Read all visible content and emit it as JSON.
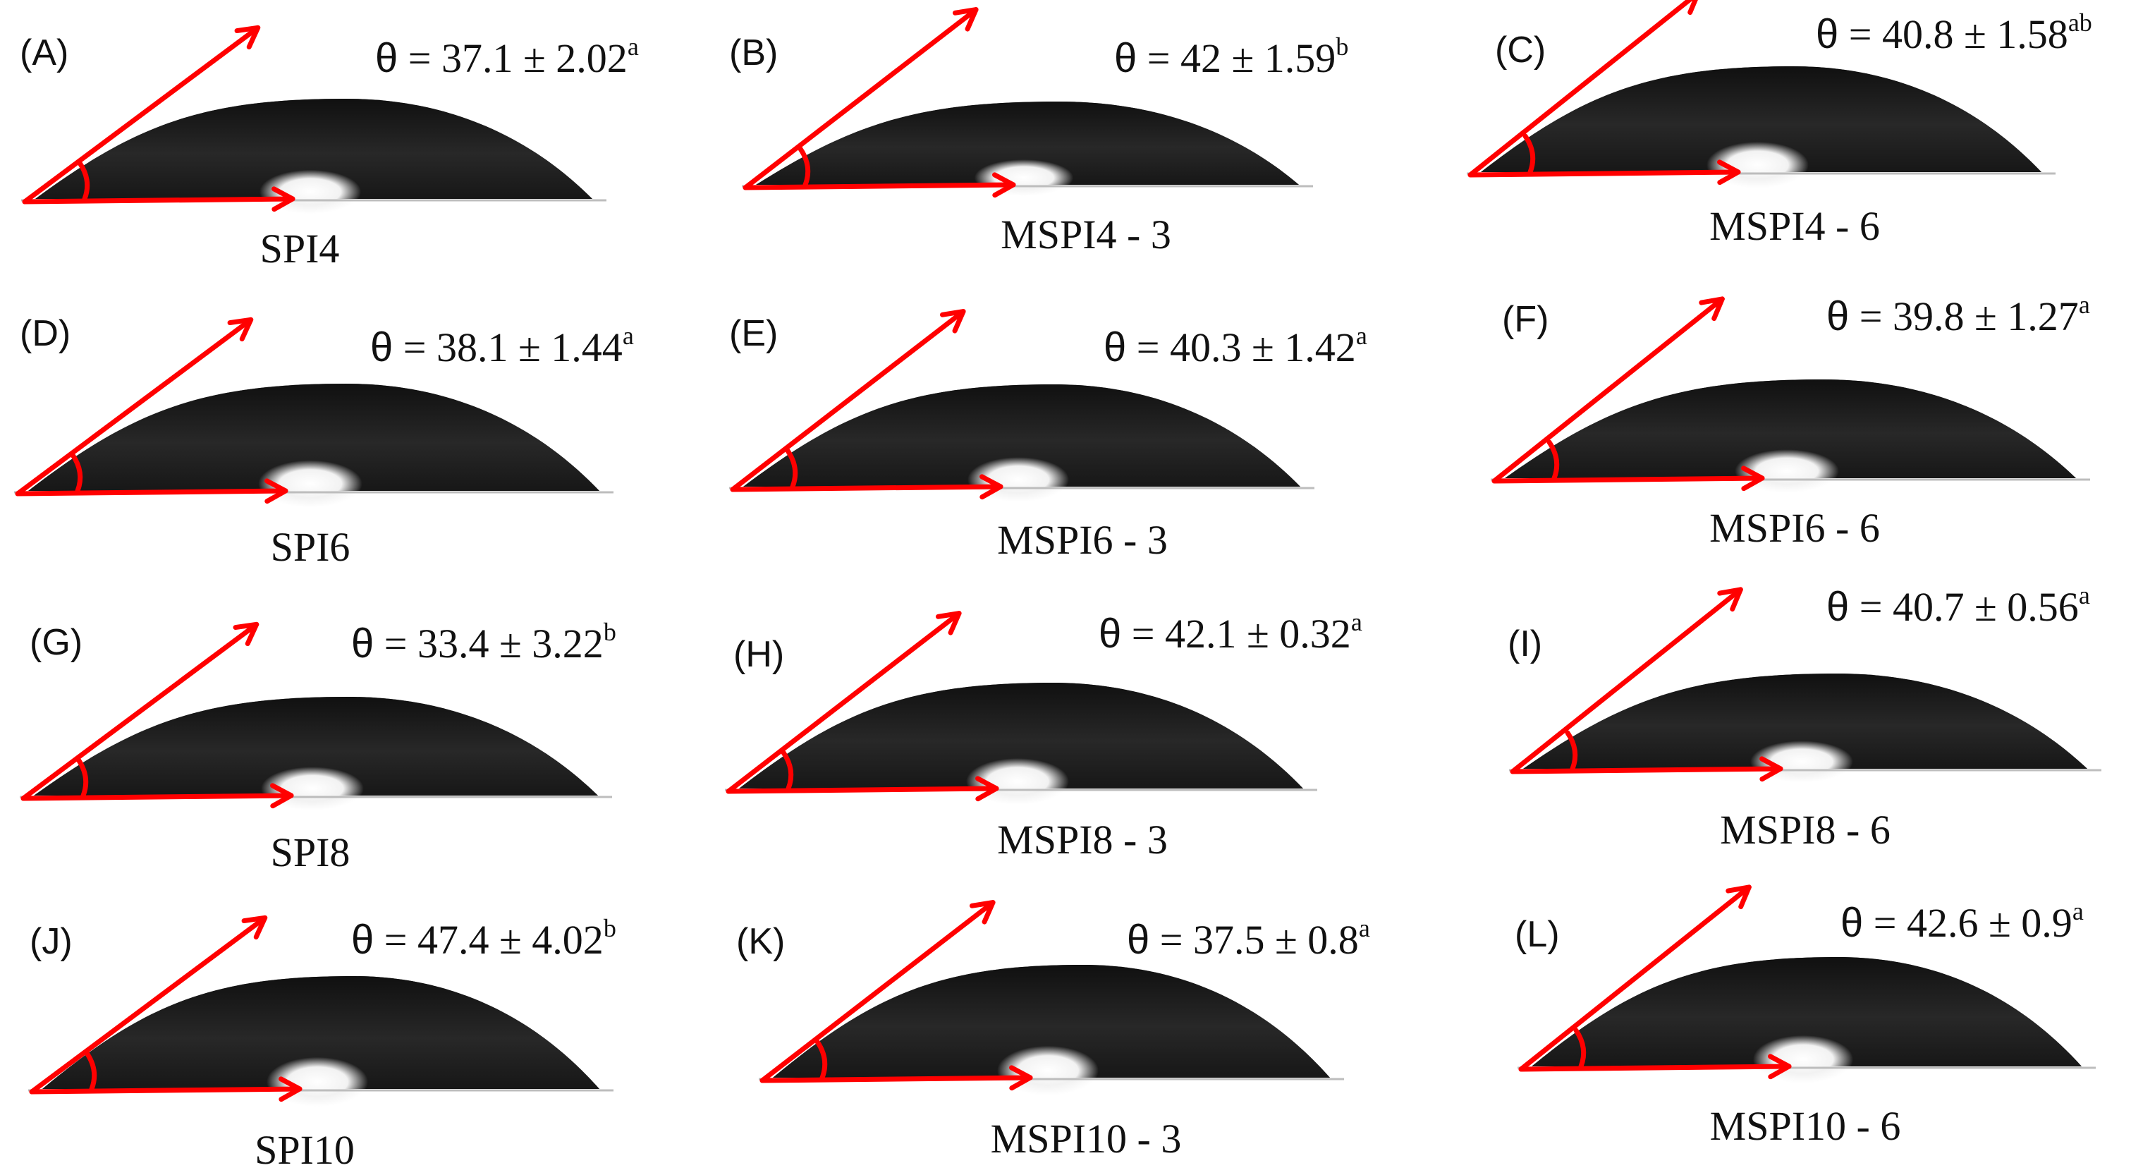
{
  "figure": {
    "arrow_color": "#ff0000",
    "droplet_color": "#1c1c1c",
    "panels": [
      {
        "letter": "(A)",
        "angle": "37.1 ± 2.02",
        "sup": "a",
        "sample": "SPI4"
      },
      {
        "letter": "(B)",
        "angle": "42 ± 1.59",
        "sup": "b",
        "sample": "MSPI4 - 3"
      },
      {
        "letter": "(C)",
        "angle": "40.8 ± 1.58",
        "sup": "ab",
        "sample": "MSPI4 - 6"
      },
      {
        "letter": "(D)",
        "angle": "38.1 ± 1.44",
        "sup": "a",
        "sample": "SPI6"
      },
      {
        "letter": "(E)",
        "angle": "40.3 ± 1.42",
        "sup": "a",
        "sample": "MSPI6 - 3"
      },
      {
        "letter": "(F)",
        "angle": "39.8 ± 1.27",
        "sup": "a",
        "sample": "MSPI6 - 6"
      },
      {
        "letter": "(G)",
        "angle": "33.4 ± 3.22",
        "sup": "b",
        "sample": "SPI8"
      },
      {
        "letter": "(H)",
        "angle": "42.1 ± 0.32",
        "sup": "a",
        "sample": "MSPI8 - 3"
      },
      {
        "letter": "(I)",
        "angle": "40.7 ± 0.56",
        "sup": "a",
        "sample": "MSPI8 - 6"
      },
      {
        "letter": "(J)",
        "angle": "47.4 ± 4.02",
        "sup": "b",
        "sample": "SPI10"
      },
      {
        "letter": "(K)",
        "angle": "37.5 ± 0.8",
        "sup": "a",
        "sample": "MSPI10 - 3"
      },
      {
        "letter": "(L)",
        "angle": "42.6 ± 0.9",
        "sup": "a",
        "sample": "MSPI10 - 6"
      }
    ]
  }
}
